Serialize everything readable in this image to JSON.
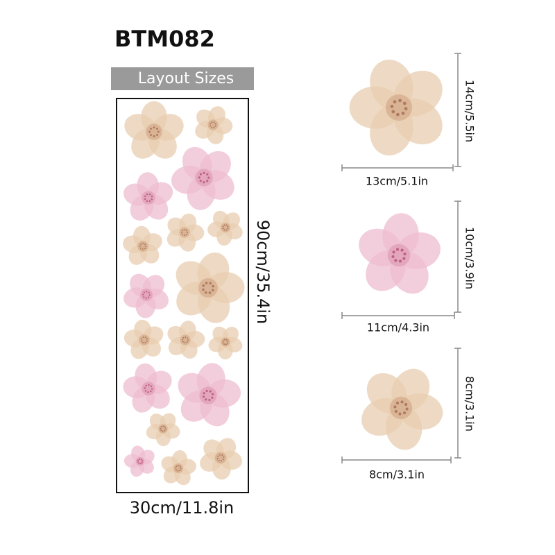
{
  "title": "BTM082",
  "badge": "Layout Sizes",
  "sheet": {
    "height_label": "90cm/35.4in",
    "width_label": "30cm/11.8in"
  },
  "samples": [
    {
      "height_label": "14cm/5.5in",
      "width_label": "13cm/5.1in"
    },
    {
      "height_label": "10cm/3.9in",
      "width_label": "11cm/4.3in"
    },
    {
      "height_label": "8cm/3.1in",
      "width_label": "8cm/3.1in"
    }
  ]
}
